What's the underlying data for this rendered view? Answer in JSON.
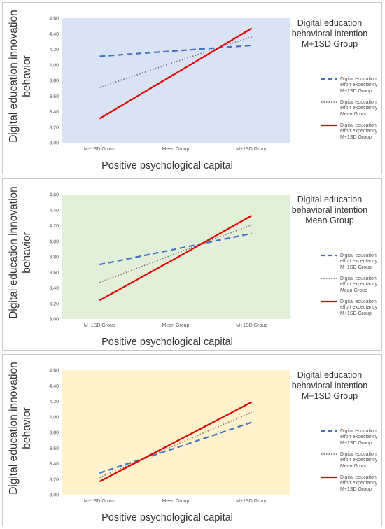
{
  "chart_data": [
    {
      "type": "line",
      "subtitle": "Digital education behavioral intention M+1SD Group",
      "background": "#dae3f3",
      "xlabel": "Positive psychological capital",
      "ylabel": "Digital education innovation behavior",
      "categories": [
        "M−1SD Group",
        "Mean Group",
        "M+1SD Group"
      ],
      "y_ticks": [
        "3.00",
        "3.20",
        "3.40",
        "3.60",
        "3.80",
        "4.00",
        "4.20",
        "4.40",
        "4.60"
      ],
      "ylim": [
        3.0,
        4.6
      ],
      "legend_position": "right",
      "series": [
        {
          "name": "Digital education effort expectancy M−1SD Group",
          "style": "dashed",
          "color": "#4472c4",
          "values": [
            4.11,
            4.18,
            4.25
          ]
        },
        {
          "name": "Digital education effort expectancy Mean Group",
          "style": "dotted",
          "color": "#7f7f7f",
          "values": [
            3.71,
            4.04,
            4.36
          ]
        },
        {
          "name": "Digital education effort expectancy M+1SD Group",
          "style": "solid",
          "color": "#e00000",
          "values": [
            3.31,
            3.89,
            4.47
          ]
        }
      ]
    },
    {
      "type": "line",
      "subtitle": "Digital education behavioral intention Mean Group",
      "background": "#e2efd9",
      "xlabel": "Positive psychological capital",
      "ylabel": "Digital education innovation behavior",
      "categories": [
        "M−1SD Group",
        "Mean Group",
        "M+1SD Group"
      ],
      "y_ticks": [
        "3.00",
        "3.20",
        "3.40",
        "3.60",
        "3.80",
        "4.00",
        "4.20",
        "4.40",
        "4.60"
      ],
      "ylim": [
        3.0,
        4.6
      ],
      "legend_position": "right",
      "series": [
        {
          "name": "Digital education effort expectancy M−1SD Group",
          "style": "dashed",
          "color": "#4472c4",
          "values": [
            3.7,
            3.9,
            4.1
          ]
        },
        {
          "name": "Digital education effort expectancy Mean Group",
          "style": "dotted",
          "color": "#7f7f7f",
          "values": [
            3.47,
            3.84,
            4.21
          ]
        },
        {
          "name": "Digital education effort expectancy M+1SD Group",
          "style": "solid",
          "color": "#e00000",
          "values": [
            3.24,
            3.78,
            4.33
          ]
        }
      ]
    },
    {
      "type": "line",
      "subtitle": "Digital education behavioral intention M−1SD Group",
      "background": "#fff2cc",
      "xlabel": "Positive psychological capital",
      "ylabel": "Digital education innovation behavior",
      "categories": [
        "M−1SD Group",
        "Mean Group",
        "M+1SD Group"
      ],
      "y_ticks": [
        "3.00",
        "3.20",
        "3.40",
        "3.60",
        "3.80",
        "4.00",
        "4.20",
        "4.40",
        "4.60"
      ],
      "ylim": [
        3.0,
        4.6
      ],
      "legend_position": "right",
      "series": [
        {
          "name": "Digital education effort expectancy M−1SD Group",
          "style": "dashed",
          "color": "#4472c4",
          "values": [
            3.28,
            3.6,
            3.93
          ]
        },
        {
          "name": "Digital education effort expectancy Mean Group",
          "style": "dotted",
          "color": "#7f7f7f",
          "values": [
            3.22,
            3.64,
            4.06
          ]
        },
        {
          "name": "Digital education effort expectancy M+1SD Group",
          "style": "solid",
          "color": "#e00000",
          "values": [
            3.17,
            3.68,
            4.19
          ]
        }
      ]
    }
  ]
}
